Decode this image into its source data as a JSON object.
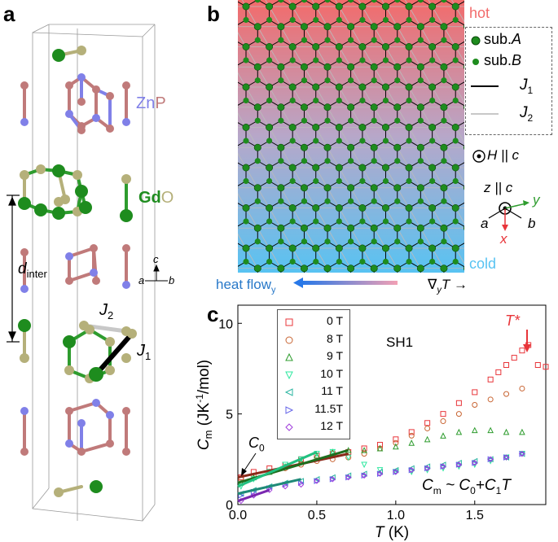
{
  "panel_a": {
    "letter": "a",
    "label_znp_zn": "Zn",
    "label_znp_p": "P",
    "label_gdo_gd": "Gd",
    "label_gdo_o": "O",
    "d_inter": "d",
    "d_inter_sub": "inter",
    "axis_c": "c",
    "axis_a": "a",
    "axis_b": "b",
    "bond_j1": "J",
    "bond_j1_sub": "1",
    "bond_j2": "J",
    "bond_j2_sub": "2",
    "colors": {
      "zn": "#8080e8",
      "p": "#c07a7a",
      "gd": "#1e8c1e",
      "o": "#b5b07a"
    }
  },
  "panel_b": {
    "letter": "b",
    "hot_label": "hot",
    "cold_label": "cold",
    "legend": {
      "sub_a": "sub.",
      "sub_a_italic": "A",
      "sub_b": "sub.",
      "sub_b_italic": "B",
      "j1": "J",
      "j1_sub": "1",
      "j2": "J",
      "j2_sub": "2"
    },
    "field_label": "H || c",
    "axes": {
      "z": "z || c",
      "y": "y",
      "x": "x",
      "a": "a",
      "b": "b"
    },
    "heat_flow": "heat flow",
    "heat_flow_sub": "y",
    "gradient": "∇",
    "gradient_sub": "y",
    "gradient_T": "T →",
    "colors": {
      "hot": "#f26b6b",
      "cold": "#58c3f2"
    }
  },
  "panel_c": {
    "letter": "c",
    "sample": "SH1",
    "tstar": "T*",
    "c0": "C",
    "c0_sub": "0",
    "fit_label": "C",
    "fit_label_sub": "m",
    "fit_label_rest": " ~ C",
    "fit_label_sub0": "0",
    "fit_label_plus": "+C",
    "fit_label_sub1": "1",
    "fit_label_T": "T"
  },
  "chart_data": {
    "type": "scatter",
    "xlabel": "T (K)",
    "ylabel": "Cm (JK-1/mol)",
    "xlim": [
      0,
      1.95
    ],
    "ylim": [
      0,
      11
    ],
    "xticks": [
      "0.0",
      "0.5",
      "1.0",
      "1.5"
    ],
    "yticks": [
      "0",
      "5",
      "10"
    ],
    "series": [
      {
        "name": "0 T",
        "color": "#e8353a",
        "marker": "square",
        "x": [
          0.02,
          0.1,
          0.2,
          0.3,
          0.4,
          0.5,
          0.6,
          0.7,
          0.8,
          0.9,
          1.0,
          1.1,
          1.2,
          1.3,
          1.4,
          1.5,
          1.6,
          1.65,
          1.7,
          1.75,
          1.8,
          1.84,
          1.9,
          1.95
        ],
        "y": [
          1.5,
          1.8,
          2.0,
          2.2,
          2.5,
          2.7,
          2.8,
          2.9,
          3.1,
          3.3,
          3.6,
          4.0,
          4.5,
          5.0,
          5.6,
          6.2,
          6.9,
          7.3,
          7.7,
          8.1,
          8.5,
          8.8,
          7.7,
          7.6
        ]
      },
      {
        "name": "8 T",
        "color": "#c86432",
        "marker": "circle",
        "x": [
          0.02,
          0.1,
          0.2,
          0.3,
          0.4,
          0.5,
          0.6,
          0.7,
          0.8,
          0.9,
          1.0,
          1.1,
          1.2,
          1.3,
          1.4,
          1.5,
          1.6,
          1.7,
          1.8
        ],
        "y": [
          1.4,
          1.6,
          1.8,
          2.0,
          2.2,
          2.4,
          2.5,
          2.6,
          2.8,
          3.1,
          3.4,
          3.8,
          4.2,
          4.6,
          5.0,
          5.5,
          5.8,
          6.1,
          6.4
        ]
      },
      {
        "name": "9 T",
        "color": "#2e9c2e",
        "marker": "triangle-up",
        "x": [
          0.02,
          0.1,
          0.2,
          0.3,
          0.4,
          0.5,
          0.6,
          0.7,
          0.8,
          0.9,
          1.0,
          1.1,
          1.2,
          1.3,
          1.4,
          1.5,
          1.6,
          1.7,
          1.8
        ],
        "y": [
          1.2,
          1.5,
          1.8,
          2.1,
          2.4,
          2.7,
          2.9,
          3.0,
          3.0,
          3.1,
          3.2,
          3.4,
          3.6,
          3.8,
          4.0,
          4.1,
          4.1,
          4.0,
          4.0
        ]
      },
      {
        "name": "10 T",
        "color": "#2ee8a0",
        "marker": "triangle-down",
        "x": [
          0.02,
          0.1,
          0.2,
          0.3,
          0.4,
          0.5,
          0.6,
          0.7,
          0.8,
          0.9,
          1.0,
          1.1,
          1.2,
          1.3,
          1.4,
          1.5,
          1.6,
          1.7,
          1.8
        ],
        "y": [
          1.0,
          1.4,
          1.8,
          2.2,
          2.5,
          2.8,
          2.9,
          2.6,
          2.2,
          1.9,
          1.8,
          1.8,
          1.9,
          2.0,
          2.1,
          2.2,
          2.4,
          2.6,
          2.8
        ]
      },
      {
        "name": "11 T",
        "color": "#28b4a0",
        "marker": "triangle-left",
        "x": [
          0.02,
          0.1,
          0.2,
          0.3,
          0.4,
          0.5,
          0.6,
          0.7,
          0.8,
          0.9,
          1.0,
          1.1,
          1.2,
          1.3,
          1.4,
          1.5,
          1.6,
          1.7,
          1.8
        ],
        "y": [
          0.6,
          0.8,
          1.0,
          1.2,
          1.3,
          1.4,
          1.5,
          1.6,
          1.7,
          1.8,
          1.9,
          2.0,
          2.1,
          2.2,
          2.3,
          2.4,
          2.5,
          2.6,
          2.8
        ]
      },
      {
        "name": "11.5T",
        "color": "#6464e8",
        "marker": "triangle-right",
        "x": [
          0.02,
          0.1,
          0.2,
          0.3,
          0.4,
          0.5,
          0.6,
          0.7,
          0.8,
          0.9,
          1.0,
          1.1,
          1.2,
          1.3,
          1.4,
          1.5,
          1.6,
          1.7,
          1.8
        ],
        "y": [
          0.5,
          0.7,
          0.9,
          1.1,
          1.2,
          1.3,
          1.4,
          1.5,
          1.6,
          1.7,
          1.8,
          1.9,
          2.0,
          2.1,
          2.2,
          2.3,
          2.5,
          2.6,
          2.8
        ]
      },
      {
        "name": "12 T",
        "color": "#a03cdc",
        "marker": "diamond",
        "x": [
          0.02,
          0.1,
          0.2,
          0.3,
          0.4,
          0.5,
          0.6,
          0.7,
          0.8,
          0.9,
          1.0,
          1.1,
          1.2,
          1.3,
          1.4,
          1.5,
          1.6,
          1.7,
          1.8
        ],
        "y": [
          0.2,
          0.5,
          0.8,
          1.0,
          1.1,
          1.3,
          1.4,
          1.5,
          1.6,
          1.7,
          1.8,
          1.9,
          2.0,
          2.1,
          2.2,
          2.3,
          2.5,
          2.6,
          2.8
        ]
      }
    ],
    "fits": [
      {
        "name": "0 T fit",
        "color": "#8a2a1a",
        "x": [
          0,
          0.7
        ],
        "y": [
          1.5,
          2.8
        ]
      },
      {
        "name": "9 T fit",
        "color": "#1e6e1e",
        "x": [
          0,
          0.7
        ],
        "y": [
          1.2,
          3.0
        ]
      },
      {
        "name": "10 T fit",
        "color": "#22c080",
        "x": [
          0,
          0.5
        ],
        "y": [
          1.0,
          2.9
        ]
      },
      {
        "name": "11 T fit",
        "color": "#1e8a78",
        "x": [
          0,
          0.4
        ],
        "y": [
          0.6,
          1.4
        ]
      },
      {
        "name": "12 T fit",
        "color": "#7a28b0",
        "x": [
          0,
          0.2
        ],
        "y": [
          0.2,
          0.8
        ]
      }
    ]
  }
}
